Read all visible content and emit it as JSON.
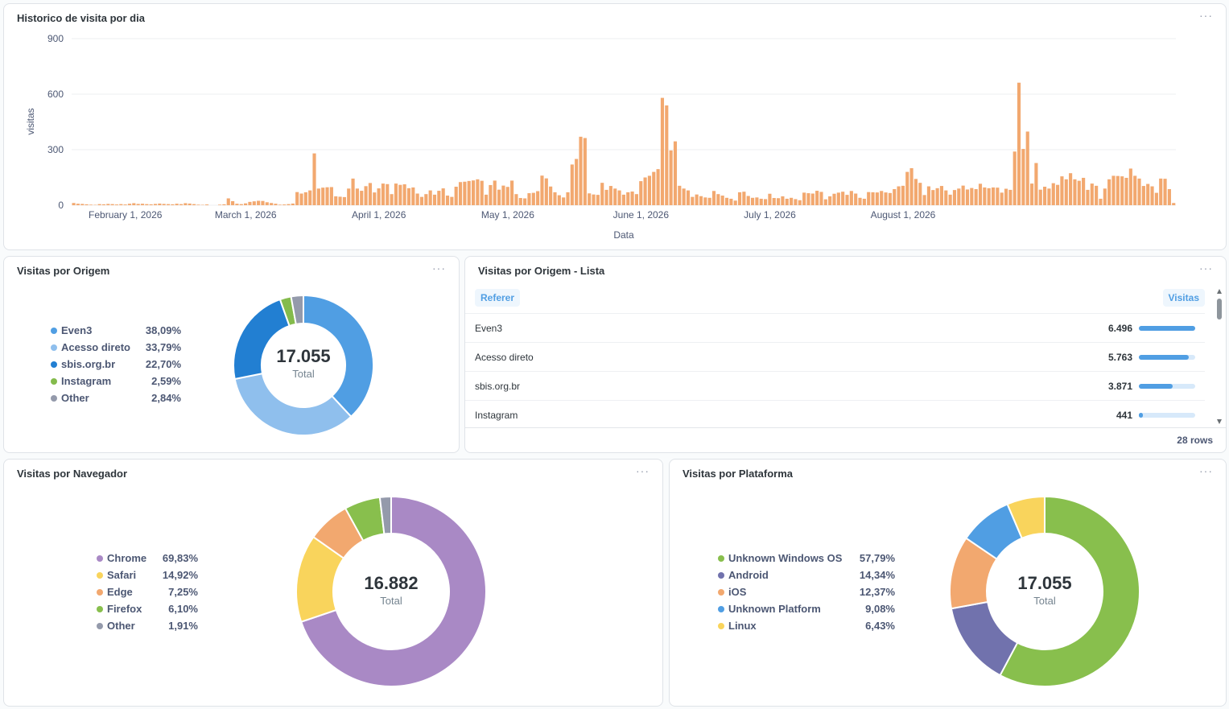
{
  "dashboard": {
    "history": {
      "title": "Historico de visita por dia",
      "menu": "···"
    },
    "origem": {
      "title": "Visitas por Origem",
      "menu": "···",
      "total": "17.055",
      "total_label": "Total",
      "legend": [
        {
          "label": "Even3",
          "pct": "38,09%",
          "color": "#509ee3"
        },
        {
          "label": "Acesso direto",
          "pct": "33,79%",
          "color": "#8fbfed"
        },
        {
          "label": "sbis.org.br",
          "pct": "22,70%",
          "color": "#227fd2"
        },
        {
          "label": "Instagram",
          "pct": "2,59%",
          "color": "#84bb4c"
        },
        {
          "label": "Other",
          "pct": "2,84%",
          "color": "#949aab"
        }
      ]
    },
    "origem_lista": {
      "title": "Visitas por Origem - Lista",
      "menu": "···",
      "col_referer": "Referer",
      "col_visitas": "Visitas",
      "rows": [
        {
          "name": "Even3",
          "value": "6.496",
          "fraction": 1.0
        },
        {
          "name": "Acesso direto",
          "value": "5.763",
          "fraction": 0.887
        },
        {
          "name": "sbis.org.br",
          "value": "3.871",
          "fraction": 0.596
        },
        {
          "name": "Instagram",
          "value": "441",
          "fraction": 0.068
        }
      ],
      "footer": "28 rows"
    },
    "navegador": {
      "title": "Visitas por Navegador",
      "menu": "···",
      "total": "16.882",
      "total_label": "Total",
      "legend": [
        {
          "label": "Chrome",
          "pct": "69,83%",
          "color": "#a989c5"
        },
        {
          "label": "Safari",
          "pct": "14,92%",
          "color": "#f9d45c"
        },
        {
          "label": "Edge",
          "pct": "7,25%",
          "color": "#f2a86f"
        },
        {
          "label": "Firefox",
          "pct": "6,10%",
          "color": "#88bf4d"
        },
        {
          "label": "Other",
          "pct": "1,91%",
          "color": "#949aab"
        }
      ]
    },
    "plataforma": {
      "title": "Visitas por Plataforma",
      "menu": "···",
      "total": "17.055",
      "total_label": "Total",
      "legend": [
        {
          "label": "Unknown Windows OS",
          "pct": "57,79%",
          "color": "#88bf4d"
        },
        {
          "label": "Android",
          "pct": "14,34%",
          "color": "#7172ad"
        },
        {
          "label": "iOS",
          "pct": "12,37%",
          "color": "#f2a86f"
        },
        {
          "label": "Unknown Platform",
          "pct": "9,08%",
          "color": "#509ee3"
        },
        {
          "label": "Linux",
          "pct": "6,43%",
          "color": "#f9d45c"
        }
      ]
    }
  },
  "chart_data": [
    {
      "type": "bar",
      "title": "Historico de visita por dia",
      "xlabel": "Data",
      "ylabel": "visitas",
      "ylim": [
        0,
        900
      ],
      "yticks": [
        "0",
        "300",
        "600",
        "900"
      ],
      "xticks": [
        "February 1, 2026",
        "March 1, 2026",
        "April 1, 2026",
        "May 1, 2026",
        "June 1, 2026",
        "July 1, 2026",
        "August 1, 2026"
      ],
      "x_start": "2026-01-20",
      "x_end": "2026-08-20",
      "grid": true,
      "color": "#f2a86f",
      "values": [
        12,
        8,
        7,
        5,
        3,
        2,
        6,
        5,
        7,
        6,
        4,
        6,
        4,
        8,
        11,
        7,
        8,
        6,
        5,
        7,
        9,
        7,
        6,
        5,
        8,
        6,
        11,
        9,
        6,
        3,
        2,
        4,
        0,
        0,
        3,
        5,
        37,
        22,
        8,
        6,
        10,
        18,
        21,
        24,
        23,
        16,
        12,
        8,
        3,
        4,
        6,
        9,
        71,
        63,
        70,
        80,
        280,
        90,
        95,
        97,
        98,
        48,
        46,
        44,
        90,
        144,
        90,
        78,
        103,
        120,
        69,
        91,
        117,
        114,
        60,
        117,
        110,
        113,
        92,
        96,
        63,
        45,
        60,
        80,
        57,
        78,
        91,
        52,
        45,
        100,
        125,
        127,
        131,
        134,
        140,
        132,
        57,
        109,
        133,
        84,
        106,
        99,
        133,
        60,
        39,
        37,
        65,
        67,
        76,
        160,
        145,
        101,
        70,
        54,
        42,
        70,
        220,
        250,
        370,
        363,
        64,
        58,
        56,
        121,
        83,
        104,
        90,
        80,
        57,
        70,
        74,
        60,
        130,
        150,
        159,
        180,
        195,
        580,
        539,
        296,
        345,
        105,
        90,
        80,
        45,
        58,
        49,
        42,
        40,
        77,
        60,
        52,
        40,
        35,
        25,
        70,
        73,
        50,
        40,
        42,
        35,
        33,
        62,
        39,
        38,
        48,
        35,
        40,
        33,
        27,
        68,
        65,
        63,
        78,
        72,
        32,
        48,
        62,
        68,
        73,
        56,
        77,
        63,
        40,
        35,
        71,
        70,
        69,
        77,
        69,
        66,
        87,
        102,
        105,
        180,
        200,
        142,
        121,
        55,
        102,
        82,
        92,
        104,
        80,
        57,
        82,
        90,
        106,
        85,
        93,
        87,
        116,
        96,
        92,
        96,
        95,
        68,
        89,
        83,
        290,
        662,
        304,
        398,
        117,
        228,
        84,
        100,
        90,
        119,
        110,
        156,
        140,
        173,
        140,
        132,
        148,
        83,
        117,
        105,
        35,
        90,
        140,
        159,
        158,
        156,
        148,
        198,
        159,
        144,
        104,
        115,
        102,
        67,
        144,
        143,
        87,
        12
      ]
    },
    {
      "type": "pie",
      "title": "Visitas por Origem",
      "categories": [
        "Even3",
        "Acesso direto",
        "sbis.org.br",
        "Instagram",
        "Other"
      ],
      "values": [
        38.09,
        33.79,
        22.7,
        2.59,
        2.84
      ],
      "colors": [
        "#509ee3",
        "#8fbfed",
        "#227fd2",
        "#84bb4c",
        "#949aab"
      ],
      "total": 17055
    },
    {
      "type": "pie",
      "title": "Visitas por Navegador",
      "categories": [
        "Chrome",
        "Safari",
        "Edge",
        "Firefox",
        "Other"
      ],
      "values": [
        69.83,
        14.92,
        7.25,
        6.1,
        1.91
      ],
      "colors": [
        "#a989c5",
        "#f9d45c",
        "#f2a86f",
        "#88bf4d",
        "#949aab"
      ],
      "total": 16882
    },
    {
      "type": "pie",
      "title": "Visitas por Plataforma",
      "categories": [
        "Unknown Windows OS",
        "Android",
        "iOS",
        "Unknown Platform",
        "Linux"
      ],
      "values": [
        57.79,
        14.34,
        12.37,
        9.08,
        6.43
      ],
      "colors": [
        "#88bf4d",
        "#7172ad",
        "#f2a86f",
        "#509ee3",
        "#f9d45c"
      ],
      "total": 17055
    }
  ]
}
